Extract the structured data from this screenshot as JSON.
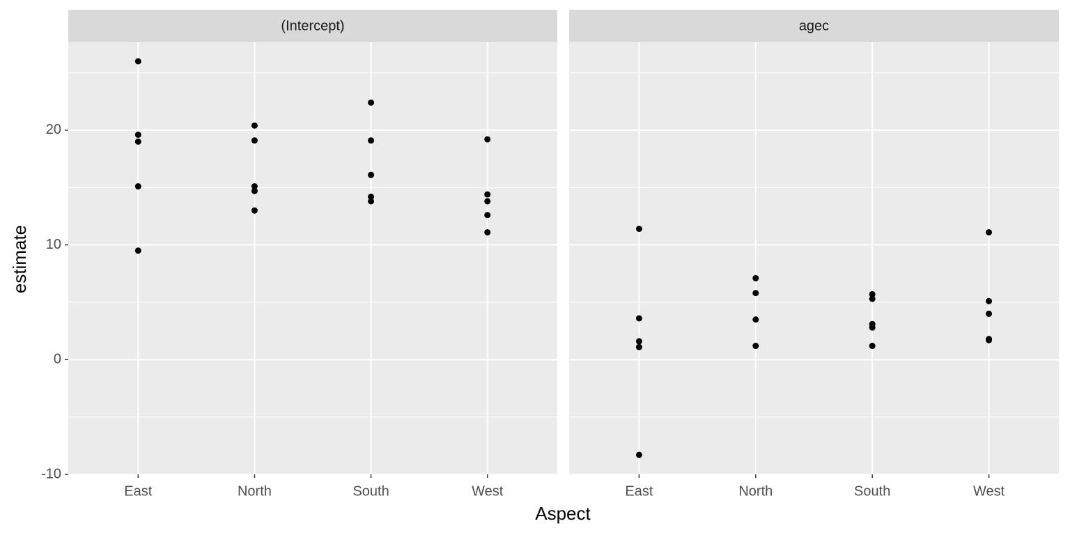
{
  "xlabel": "Aspect",
  "ylabel": "estimate",
  "chart_data": [
    {
      "type": "scatter",
      "title": "(Intercept)",
      "color": "#000000",
      "categories": [
        "East",
        "North",
        "South",
        "West"
      ],
      "values": [
        [
          26.0,
          19.6,
          19.0,
          15.1,
          9.5
        ],
        [
          20.4,
          19.1,
          15.1,
          14.7,
          13.0
        ],
        [
          22.4,
          19.1,
          16.1,
          14.2,
          13.8
        ],
        [
          19.2,
          14.4,
          13.8,
          12.6,
          11.1
        ]
      ],
      "ylim": [
        -10,
        27.7
      ],
      "yticks": [
        -10,
        0,
        10,
        20
      ],
      "yminor": [
        -5,
        5,
        15,
        25
      ],
      "grid": true
    },
    {
      "type": "scatter",
      "title": "agec",
      "color": "#000000",
      "categories": [
        "East",
        "North",
        "South",
        "West"
      ],
      "values": [
        [
          11.4,
          3.6,
          1.6,
          1.1,
          -8.3
        ],
        [
          7.1,
          5.8,
          3.5,
          1.2
        ],
        [
          5.7,
          5.3,
          3.1,
          2.8,
          1.2
        ],
        [
          11.1,
          5.1,
          4.0,
          1.8,
          1.7
        ]
      ],
      "ylim": [
        -10,
        27.7
      ],
      "yticks": [
        -10,
        0,
        10,
        20
      ],
      "yminor": [
        -5,
        5,
        15,
        25
      ],
      "grid": true
    }
  ]
}
